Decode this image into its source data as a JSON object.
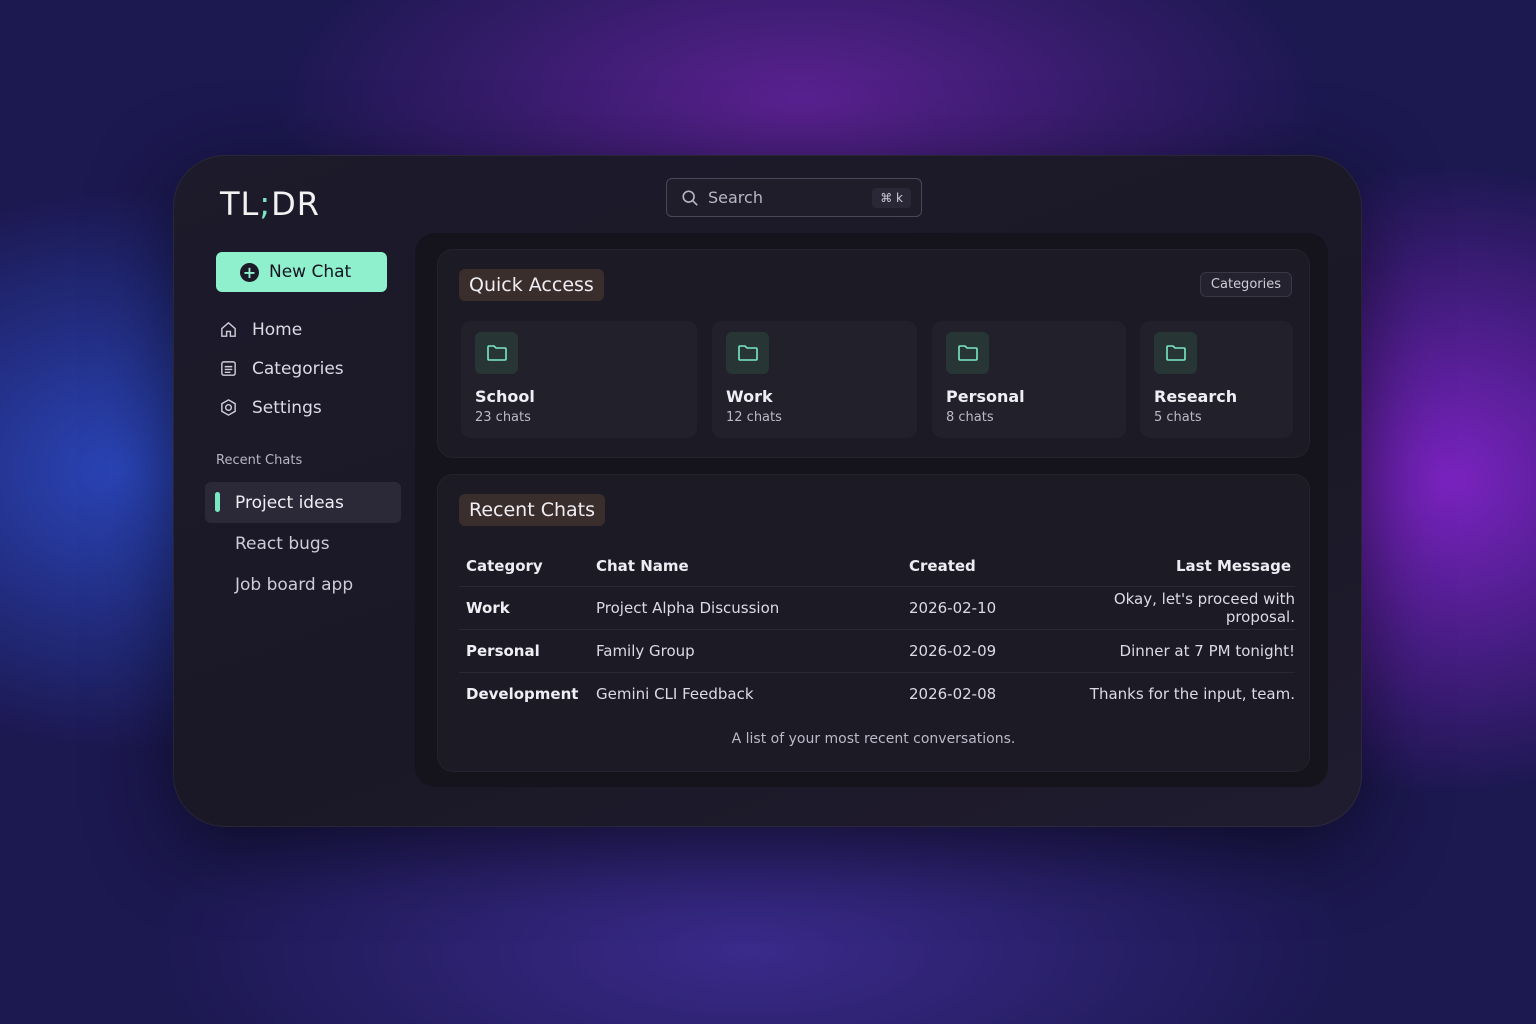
{
  "app": {
    "logo": "TL;DR",
    "accent": "#8ef0cc"
  },
  "sidebar": {
    "new_chat": "New Chat",
    "nav": [
      {
        "label": "Home",
        "icon": "home-icon"
      },
      {
        "label": "Categories",
        "icon": "list-icon"
      },
      {
        "label": "Settings",
        "icon": "gear-icon"
      }
    ],
    "recent_title": "Recent Chats",
    "recent": [
      {
        "label": "Project ideas",
        "active": true
      },
      {
        "label": "React bugs"
      },
      {
        "label": "Job board app"
      }
    ]
  },
  "search": {
    "placeholder": "Search",
    "shortcut": "⌘ k"
  },
  "quick_access": {
    "title": "Quick Access",
    "categories_button": "Categories",
    "folders": [
      {
        "name": "School",
        "count": "23 chats"
      },
      {
        "name": "Work",
        "count": "12 chats"
      },
      {
        "name": "Personal",
        "count": "8 chats"
      },
      {
        "name": "Research",
        "count": "5 chats"
      }
    ]
  },
  "recent_chats": {
    "title": "Recent Chats",
    "columns": [
      "Category",
      "Chat Name",
      "Created",
      "Last Message"
    ],
    "rows": [
      [
        "Work",
        "Project Alpha Discussion",
        "2026-02-10",
        "Okay, let's proceed with proposal."
      ],
      [
        "Personal",
        "Family Group",
        "2026-02-09",
        "Dinner at 7 PM tonight!"
      ],
      [
        "Development",
        "Gemini CLI Feedback",
        "2026-02-08",
        "Thanks for the input, team."
      ]
    ],
    "caption": "A list of your most recent conversations."
  }
}
